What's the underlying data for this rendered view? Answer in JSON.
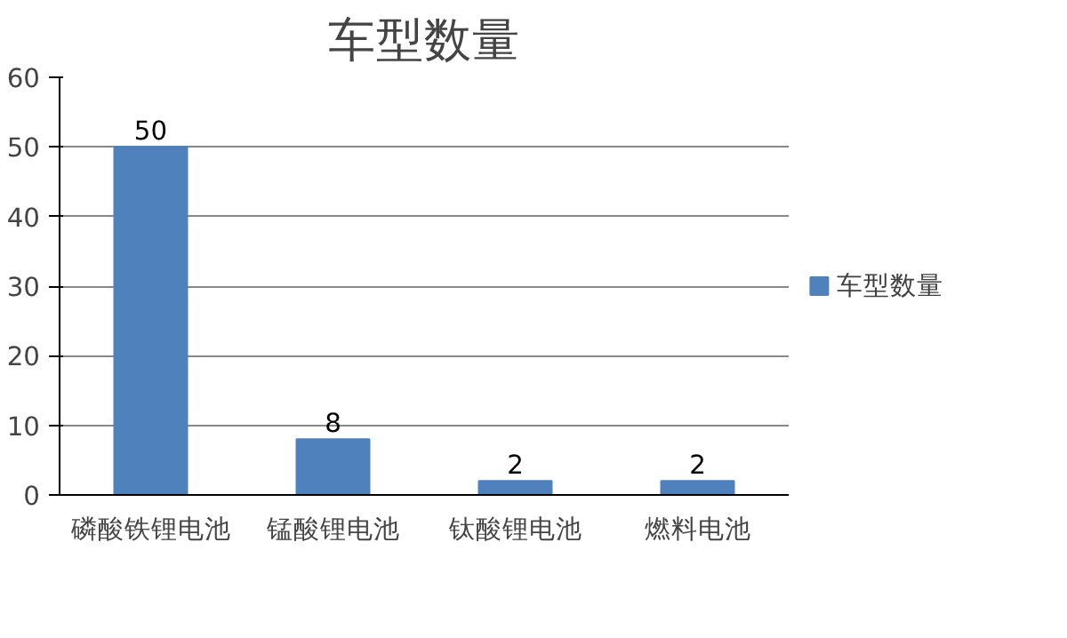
{
  "chart_data": {
    "type": "bar",
    "title": "车型数量",
    "categories": [
      "磷酸铁锂电池",
      "锰酸锂电池",
      "钛酸锂电池",
      "燃料电池"
    ],
    "series": [
      {
        "name": "车型数量",
        "color": "#4f81bd",
        "values": [
          50,
          8,
          2,
          2
        ]
      }
    ],
    "ylim": [
      0,
      60
    ],
    "yticks": [
      0,
      10,
      20,
      30,
      40,
      50,
      60
    ],
    "grid": "y",
    "legend": "right",
    "data_labels": true
  }
}
